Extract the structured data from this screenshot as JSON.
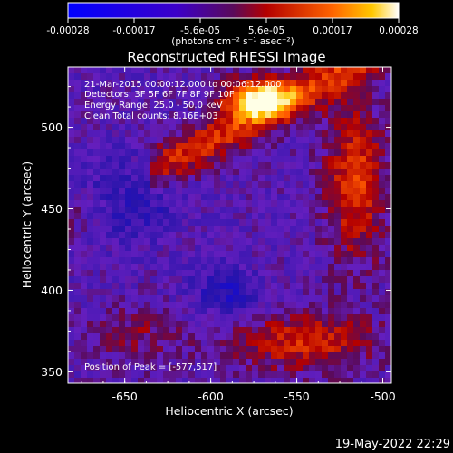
{
  "colorbar": {
    "tick_labels": [
      "-0.00028",
      "-0.00017",
      "-5.6e-05",
      "5.6e-05",
      "0.00017",
      "0.00028"
    ],
    "units_label": "(photons cm⁻² s⁻¹ asec⁻²)"
  },
  "info_lines": [
    "21-Mar-2015 00:00:12.000 to 00:06:12.000",
    "Detectors: 3F 5F 6F 7F 8F 9F 10F",
    "Energy Range: 25.0 - 50.0 keV",
    "Clean    Total counts: 8.16E+03"
  ],
  "peak_label": "Position of Peak = [-577,517]",
  "footer_date": "19-May-2022 22:29",
  "chart_data": {
    "type": "heatmap",
    "title": "Reconstructed RHESSI Image",
    "xlabel": "Heliocentric X (arcsec)",
    "ylabel": "Heliocentric Y (arcsec)",
    "xlim": [
      -683,
      -495
    ],
    "ylim": [
      343,
      537
    ],
    "x_ticks": [
      -650,
      -600,
      -550,
      -500
    ],
    "y_ticks": [
      350,
      400,
      450,
      500
    ],
    "x_tick_labels": [
      "-650",
      "-600",
      "-550",
      "-500"
    ],
    "y_tick_labels": [
      "350",
      "400",
      "450",
      "500"
    ],
    "colorbar_range": [
      -0.00028,
      0.00028
    ],
    "peak_position": [
      -577,
      517
    ],
    "colors": {
      "background": "#000000",
      "negative": "#0000ff",
      "low": "#6a1fc8",
      "mid": "#d21e00",
      "high": "#ff8c00",
      "peak": "#ffffe0"
    }
  }
}
